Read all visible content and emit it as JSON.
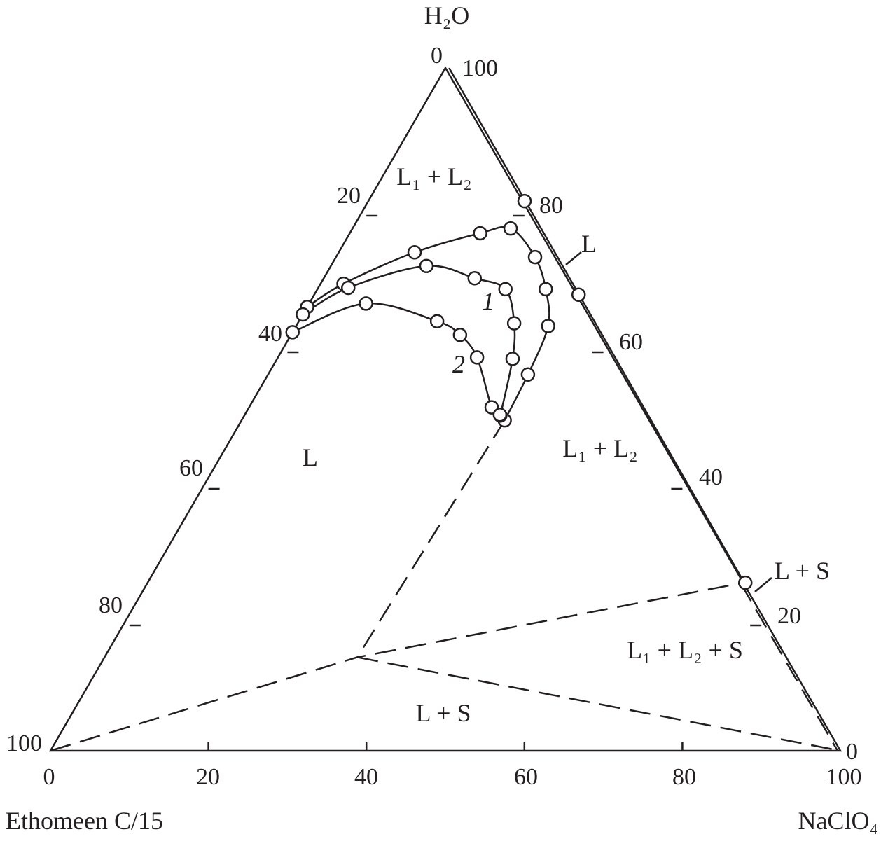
{
  "chart_data": {
    "type": "ternary",
    "components": {
      "top": "H₂O",
      "left": "Ethomeen C/15",
      "right": "NaClO₄"
    },
    "point_format": "[NaClO4 %, H2O %] (Ethomeen C/15 = remainder)",
    "bottom_ticks": [
      "0",
      "20",
      "40",
      "60",
      "80",
      "100"
    ],
    "left_ticks": [
      "0",
      "20",
      "40",
      "60",
      "80",
      "100"
    ],
    "right_ticks": [
      "100",
      "80",
      "60",
      "40",
      "20",
      "0"
    ],
    "series": [
      {
        "name": "",
        "style": "solid-markers",
        "points": [
          [
            0,
            65.0
          ],
          [
            2.9,
            68.4
          ],
          [
            9.6,
            73.0
          ],
          [
            16.5,
            75.8
          ],
          [
            20.0,
            76.5
          ],
          [
            25.2,
            72.3
          ],
          [
            28.9,
            67.6
          ],
          [
            31.9,
            62.2
          ],
          [
            32.9,
            55.1
          ],
          [
            33.3,
            48.4
          ]
        ]
      },
      {
        "name": "1",
        "style": "solid-markers",
        "points": [
          [
            0,
            63.9
          ],
          [
            3.8,
            67.8
          ],
          [
            12.1,
            71.0
          ],
          [
            19.1,
            69.2
          ],
          [
            23.8,
            67.6
          ],
          [
            27.4,
            62.6
          ],
          [
            29.8,
            57.4
          ],
          [
            32.4,
            49.1
          ]
        ]
      },
      {
        "name": "2",
        "style": "solid-markers",
        "points": [
          [
            0,
            61.3
          ],
          [
            7.2,
            65.5
          ],
          [
            17.5,
            62.9
          ],
          [
            21.4,
            60.9
          ],
          [
            25.2,
            57.6
          ],
          [
            30.7,
            50.3
          ],
          [
            32.3,
            49.2
          ]
        ]
      }
    ],
    "edge_points": [
      [
        19.5,
        80.5
      ],
      [
        33.2,
        66.8
      ],
      [
        75.4,
        24.6
      ]
    ],
    "solubility_boundary": [
      [
        0,
        100
      ],
      [
        75.4,
        24.6
      ]
    ],
    "dashed_lines": [
      [
        [
          33.3,
          48.4
        ],
        [
          32.0,
          13.7
        ]
      ],
      [
        [
          0,
          0
        ],
        [
          32.0,
          13.7
        ],
        [
          75.4,
          24.6
        ]
      ],
      [
        [
          32.0,
          13.7
        ],
        [
          100,
          0
        ]
      ],
      [
        [
          75.4,
          24.6
        ],
        [
          100,
          0
        ]
      ]
    ],
    "region_labels": {
      "top_l1l2": "L₁ + L₂",
      "edge_l": "L",
      "right_l1l2": "L₁ + L₂",
      "left_l": "L",
      "edge_ls": "L + S",
      "l1l2s": "L₁ + L₂ + S",
      "bottom_ls": "L + S"
    },
    "colors": {
      "ink": "#231f20",
      "marker_fill": "#ffffff"
    }
  }
}
